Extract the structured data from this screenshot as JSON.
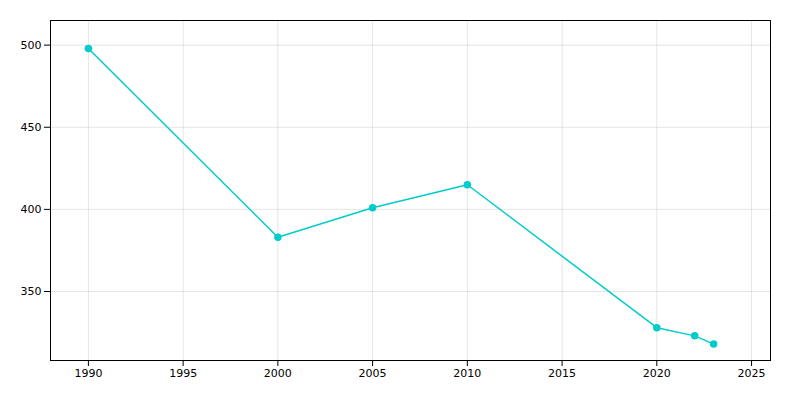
{
  "chart_data": {
    "type": "line",
    "x": [
      1990,
      2000,
      2005,
      2010,
      2020,
      2022,
      2023
    ],
    "values": [
      498,
      383,
      401,
      415,
      328,
      323,
      318
    ],
    "color": "#00CCCC",
    "marker": "circle",
    "xlim": [
      1988,
      2026
    ],
    "xticks": [
      1990,
      1995,
      2000,
      2005,
      2010,
      2015,
      2020,
      2025
    ],
    "ylim": [
      308,
      515
    ],
    "yticks": [
      350,
      400,
      450,
      500
    ],
    "grid": true
  }
}
